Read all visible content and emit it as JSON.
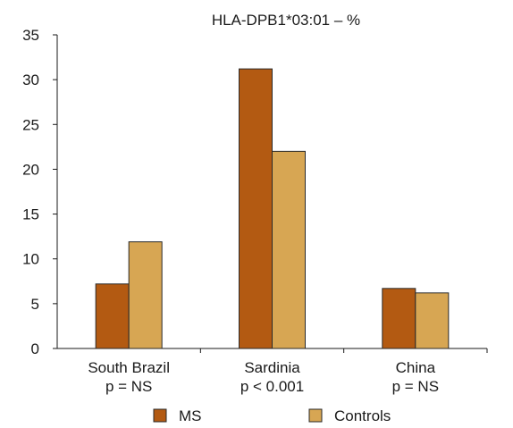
{
  "chart_data": {
    "type": "bar",
    "title": "HLA-DPB1*03:01 – %",
    "categories": [
      [
        "South Brazil",
        "p = NS"
      ],
      [
        "Sardinia",
        "p < 0.001"
      ],
      [
        "China",
        "p = NS"
      ]
    ],
    "series": [
      {
        "name": "MS",
        "color": "#B35A12",
        "values": [
          7.2,
          31.2,
          6.7
        ]
      },
      {
        "name": "Controls",
        "color": "#D7A653",
        "values": [
          11.9,
          22.0,
          6.2
        ]
      }
    ],
    "ylim": [
      0,
      35
    ],
    "yticks": [
      0,
      5,
      10,
      15,
      20,
      25,
      30,
      35
    ],
    "grid": false,
    "legend_position": "bottom"
  }
}
